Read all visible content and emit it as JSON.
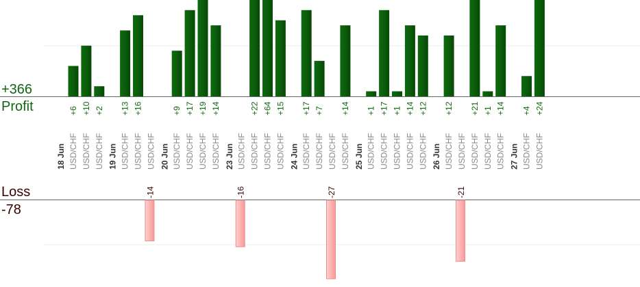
{
  "summary": {
    "profit_total": "+366",
    "profit_label": "Profit",
    "loss_label": "Loss",
    "loss_total": "-78"
  },
  "colors": {
    "profit_bar": "#0b5d0b",
    "profit_text": "#116611",
    "loss_bar": "#ffb3b3",
    "loss_text": "#3a0000",
    "date_text": "#333333",
    "symbol_text": "#888888"
  },
  "chart_data": {
    "type": "bar",
    "grid": true,
    "profit_ylim": [
      0,
      19
    ],
    "loss_ylim": [
      0,
      27
    ],
    "days": [
      {
        "date": "18 Jun",
        "trades": [
          {
            "symbol": "USD/CHF",
            "value": 6,
            "label": "+6"
          },
          {
            "symbol": "USD/CHF",
            "value": 10,
            "label": "+10"
          },
          {
            "symbol": "USD/CHF",
            "value": 2,
            "label": "+2"
          }
        ]
      },
      {
        "date": "19 Jun",
        "trades": [
          {
            "symbol": "USD/CHF",
            "value": 13,
            "label": "+13"
          },
          {
            "symbol": "USD/CHF",
            "value": 16,
            "label": "+16"
          },
          {
            "symbol": "USD/CHF",
            "value": -14,
            "label": "-14"
          }
        ]
      },
      {
        "date": "20 Jun",
        "trades": [
          {
            "symbol": "USD/CHF",
            "value": 9,
            "label": "+9"
          },
          {
            "symbol": "USD/CHF",
            "value": 17,
            "label": "+17"
          },
          {
            "symbol": "USD/CHF",
            "value": 19,
            "label": "+19"
          },
          {
            "symbol": "USD/CHF",
            "value": 14,
            "label": "+14"
          }
        ]
      },
      {
        "date": "23 Jun",
        "trades": [
          {
            "symbol": "USD/CHF",
            "value": -16,
            "label": "-16"
          },
          {
            "symbol": "USD/CHF",
            "value": 22,
            "label": "+22"
          },
          {
            "symbol": "USD/CHF",
            "value": 64,
            "label": "+64"
          },
          {
            "symbol": "USD/CHF",
            "value": 15,
            "label": "+15"
          }
        ]
      },
      {
        "date": "24 Jun",
        "trades": [
          {
            "symbol": "USD/CHF",
            "value": 17,
            "label": "+17"
          },
          {
            "symbol": "USD/CHF",
            "value": 7,
            "label": "+7"
          },
          {
            "symbol": "USD/CHF",
            "value": -27,
            "label": "-27"
          },
          {
            "symbol": "USD/CHF",
            "value": 14,
            "label": "+14"
          }
        ]
      },
      {
        "date": "25 Jun",
        "trades": [
          {
            "symbol": "USD/CHF",
            "value": 1,
            "label": "+1"
          },
          {
            "symbol": "USD/CHF",
            "value": 17,
            "label": "+17"
          },
          {
            "symbol": "USD/CHF",
            "value": 1,
            "label": "+1"
          },
          {
            "symbol": "USD/CHF",
            "value": 14,
            "label": "+14"
          },
          {
            "symbol": "USD/CHF",
            "value": 12,
            "label": "+12"
          }
        ]
      },
      {
        "date": "26 Jun",
        "trades": [
          {
            "symbol": "USD/CHF",
            "value": 12,
            "label": "+12"
          },
          {
            "symbol": "USD/CHF",
            "value": -21,
            "label": "-21"
          },
          {
            "symbol": "USD/CHF",
            "value": 21,
            "label": "+21"
          },
          {
            "symbol": "USD/CHF",
            "value": 1,
            "label": "+1"
          },
          {
            "symbol": "USD/CHF",
            "value": 14,
            "label": "+14"
          }
        ]
      },
      {
        "date": "27 Jun",
        "trades": [
          {
            "symbol": "USD/CHF",
            "value": 4,
            "label": "+4"
          },
          {
            "symbol": "USD/CHF",
            "value": 24,
            "label": "+24"
          }
        ]
      }
    ]
  }
}
